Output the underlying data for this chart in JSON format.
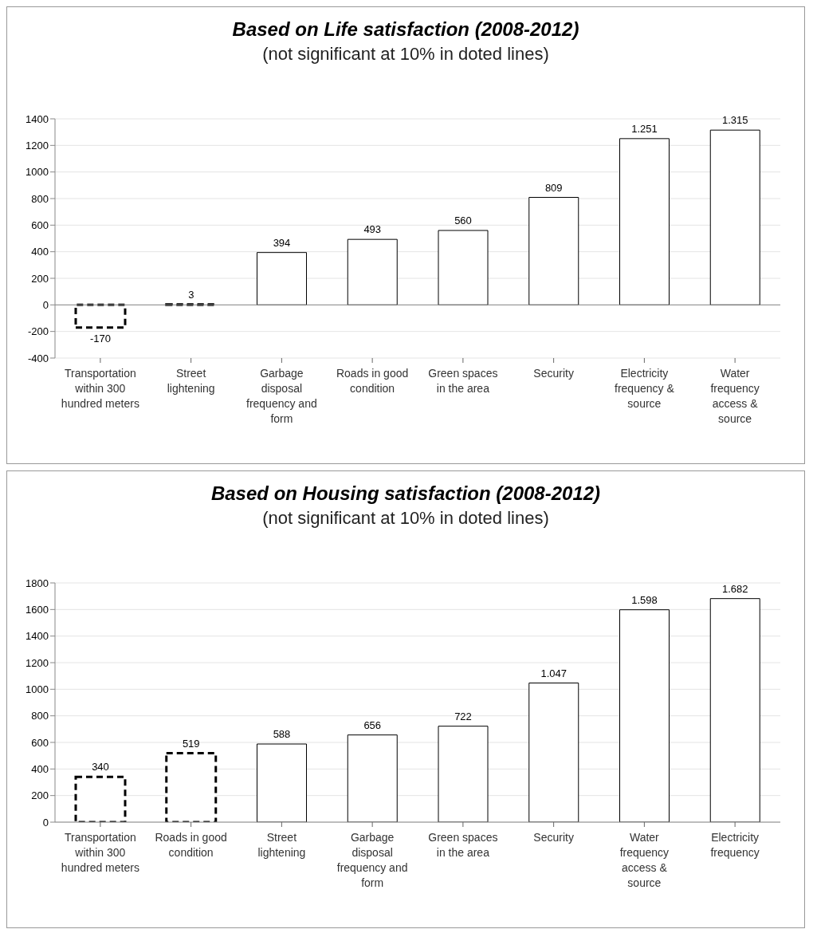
{
  "chart_data": [
    {
      "type": "bar",
      "title": "Based on Life satisfaction (2008-2012)",
      "subtitle": "(not significant at 10% in doted lines)",
      "categories": [
        "Transportation within 300 hundred meters",
        "Street lightening",
        "Garbage disposal frequency and form",
        "Roads in good condition",
        "Green spaces in the area",
        "Security",
        "Electricity frequency & source",
        "Water frequency access & source"
      ],
      "stacked": true,
      "grid": "y",
      "ylim": [
        -400,
        1400
      ],
      "yticks": [
        -400,
        -200,
        0,
        200,
        400,
        600,
        800,
        1000,
        1200,
        1400
      ],
      "series": [
        {
          "color": "#ffffff",
          "line_style": "dashed",
          "values": [
            -170,
            3,
            null,
            null,
            null,
            null,
            null,
            null
          ],
          "value_labels": [
            "-170",
            "3",
            null,
            null,
            null,
            null,
            null,
            null
          ]
        },
        {
          "color": "#ffffff",
          "line_style": "solid",
          "values": [
            null,
            null,
            394,
            493,
            560,
            809,
            1251,
            1315
          ],
          "value_labels": [
            null,
            null,
            "394",
            "493",
            "560",
            "809",
            "1.251",
            "1.315"
          ]
        }
      ]
    },
    {
      "type": "bar",
      "title": "Based on Housing satisfaction (2008-2012)",
      "subtitle": "(not significant at 10% in doted lines)",
      "categories": [
        "Transportation within 300 hundred meters",
        "Roads in good condition",
        "Street lightening",
        "Garbage disposal frequency and form",
        "Green spaces in the area",
        "Security",
        "Water frequency access & source",
        "Electricity frequency"
      ],
      "stacked": true,
      "grid": "y",
      "ylim": [
        0,
        1800
      ],
      "yticks": [
        0,
        200,
        400,
        600,
        800,
        1000,
        1200,
        1400,
        1600,
        1800
      ],
      "series": [
        {
          "color": "#ffffff",
          "line_style": "dashed",
          "values": [
            340,
            519,
            null,
            null,
            null,
            null,
            null,
            null
          ],
          "value_labels": [
            "340",
            "519",
            null,
            null,
            null,
            null,
            null,
            null
          ]
        },
        {
          "color": "#ffffff",
          "line_style": "solid",
          "values": [
            null,
            null,
            588,
            656,
            722,
            1047,
            1598,
            1682
          ],
          "value_labels": [
            null,
            null,
            "588",
            "656",
            "722",
            "1.047",
            "1.598",
            "1.682"
          ]
        }
      ]
    }
  ]
}
